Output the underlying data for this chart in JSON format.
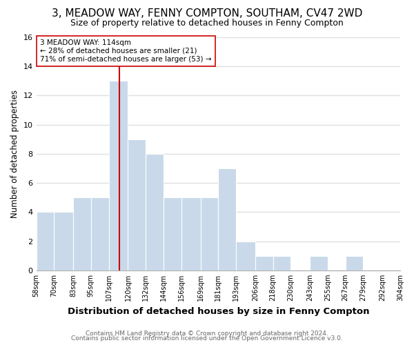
{
  "title": "3, MEADOW WAY, FENNY COMPTON, SOUTHAM, CV47 2WD",
  "subtitle": "Size of property relative to detached houses in Fenny Compton",
  "xlabel": "Distribution of detached houses by size in Fenny Compton",
  "ylabel": "Number of detached properties",
  "bar_color": "#c9d9ea",
  "bar_edgecolor": "white",
  "bins": [
    58,
    70,
    83,
    95,
    107,
    120,
    132,
    144,
    156,
    169,
    181,
    193,
    206,
    218,
    230,
    243,
    255,
    267,
    279,
    292,
    304
  ],
  "counts": [
    4,
    4,
    5,
    5,
    13,
    9,
    8,
    5,
    5,
    5,
    7,
    2,
    1,
    1,
    0,
    1,
    0,
    1,
    0,
    0
  ],
  "bin_labels": [
    "58sqm",
    "70sqm",
    "83sqm",
    "95sqm",
    "107sqm",
    "120sqm",
    "132sqm",
    "144sqm",
    "156sqm",
    "169sqm",
    "181sqm",
    "193sqm",
    "206sqm",
    "218sqm",
    "230sqm",
    "243sqm",
    "255sqm",
    "267sqm",
    "279sqm",
    "292sqm",
    "304sqm"
  ],
  "vline_x": 114,
  "vline_color": "#cc0000",
  "annotation_line1": "3 MEADOW WAY: 114sqm",
  "annotation_line2": "← 28% of detached houses are smaller (21)",
  "annotation_line3": "71% of semi-detached houses are larger (53) →",
  "annotation_box_edgecolor": "#cc0000",
  "annotation_box_facecolor": "white",
  "ylim": [
    0,
    16
  ],
  "yticks": [
    0,
    2,
    4,
    6,
    8,
    10,
    12,
    14,
    16
  ],
  "footnote1": "Contains HM Land Registry data © Crown copyright and database right 2024.",
  "footnote2": "Contains public sector information licensed under the Open Government Licence v3.0.",
  "background_color": "white",
  "grid_color": "#e0e0e0",
  "title_fontsize": 11,
  "subtitle_fontsize": 9,
  "xlabel_fontsize": 9.5,
  "ylabel_fontsize": 8.5,
  "footnote_fontsize": 6.5
}
